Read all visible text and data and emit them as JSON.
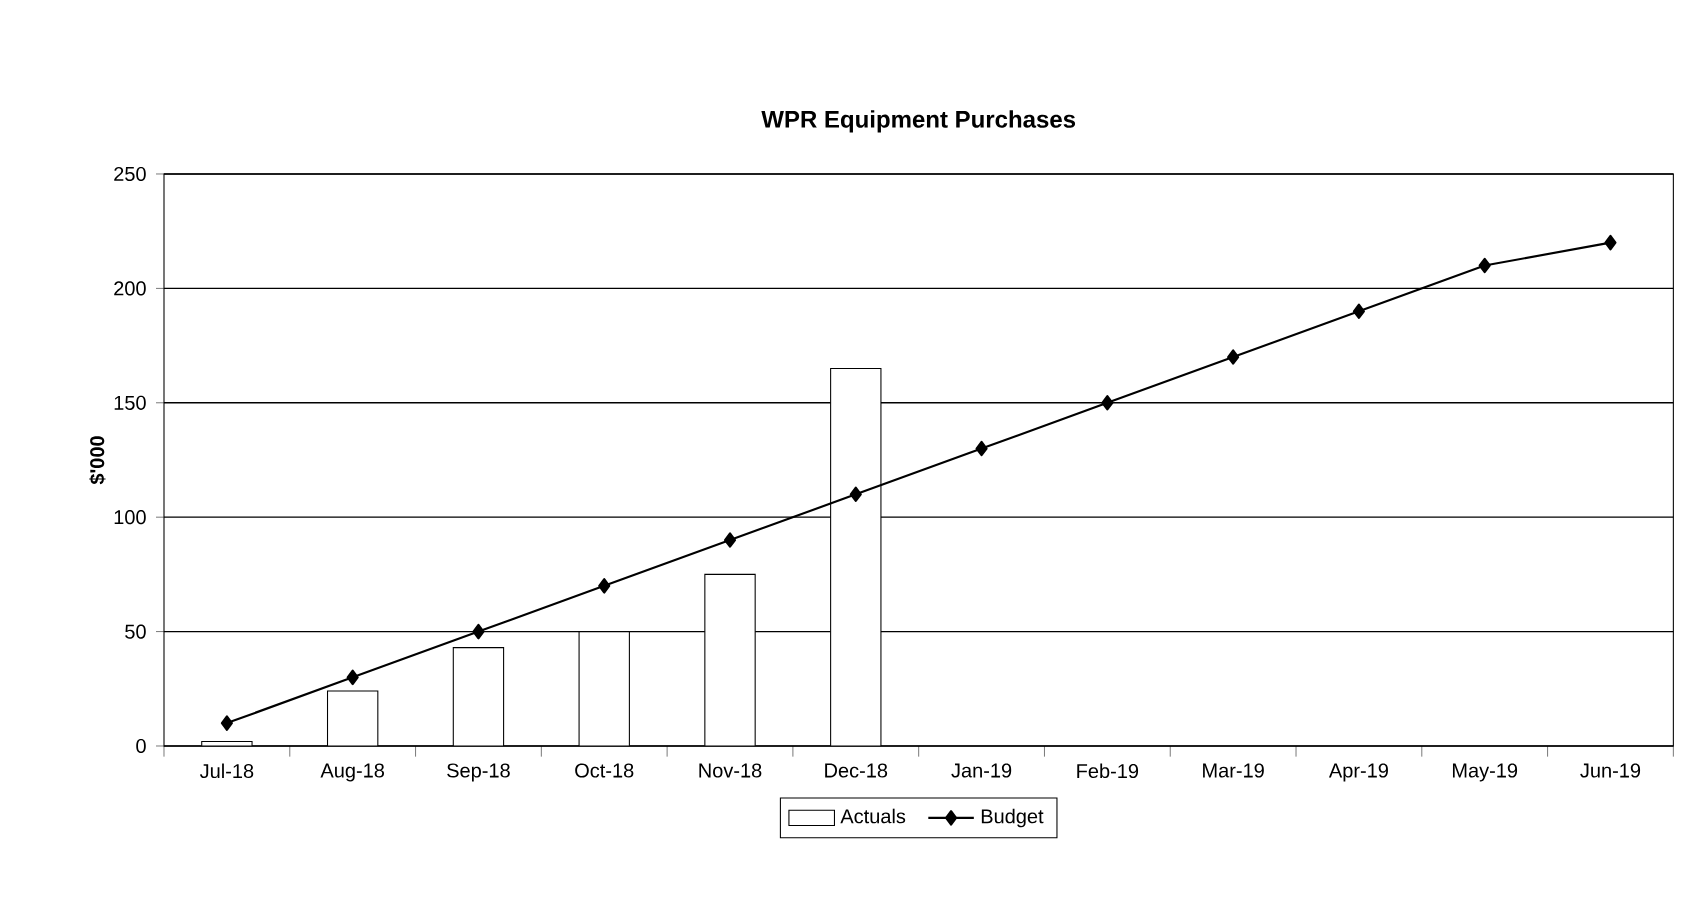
{
  "chart_data": {
    "type": "bar",
    "title": "WPR Equipment Purchases",
    "ylabel": "$'000",
    "categories": [
      "Jul-18",
      "Aug-18",
      "Sep-18",
      "Oct-18",
      "Nov-18",
      "Dec-18",
      "Jan-19",
      "Feb-19",
      "Mar-19",
      "Apr-19",
      "May-19",
      "Jun-19"
    ],
    "series": [
      {
        "name": "Actuals",
        "color": "#ffffff",
        "values": [
          2,
          24,
          43,
          50,
          75,
          165,
          null,
          null,
          null,
          null,
          null,
          null
        ]
      },
      {
        "name": "Budget",
        "type": "line",
        "color": "#000000",
        "marker": "diamond",
        "line_style": "solid",
        "values": [
          10,
          30,
          50,
          70,
          90,
          110,
          130,
          150,
          170,
          190,
          210,
          220
        ]
      }
    ],
    "ylim": [
      0,
      250
    ],
    "yticks": [
      0,
      50,
      100,
      150,
      200,
      250
    ],
    "grid": "y",
    "legend": "bottom"
  }
}
